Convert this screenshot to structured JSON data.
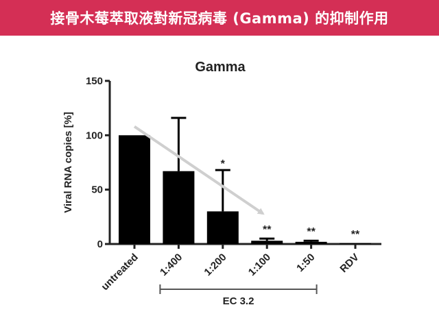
{
  "banner": {
    "title": "接骨木莓萃取液對新冠病毒 (Gamma) 的抑制作用"
  },
  "chart_data": {
    "type": "bar",
    "title": "Gamma",
    "xlabel": "",
    "ylabel": "Viral RNA copies [%]",
    "ylim": [
      0,
      150
    ],
    "yticks": [
      0,
      50,
      100,
      150
    ],
    "categories": [
      "untreated",
      "1:400",
      "1:200",
      "1:100",
      "1:50",
      "RDV"
    ],
    "values": [
      100,
      67,
      30,
      3,
      2,
      0.5
    ],
    "error_upper": [
      0,
      49,
      38,
      2,
      1,
      0
    ],
    "significance": [
      "",
      "",
      "*",
      "**",
      "**",
      "**"
    ],
    "bracket": {
      "label": "EC 3.2",
      "from": "1:400",
      "to": "1:50"
    },
    "trend_arrow": {
      "from": [
        "untreated",
        108
      ],
      "to": [
        "1:100",
        28
      ]
    },
    "colors": {
      "bar": "#000000",
      "arrow": "#cfcfcf",
      "axis": "#222222"
    },
    "grid": false,
    "legend": "none"
  }
}
